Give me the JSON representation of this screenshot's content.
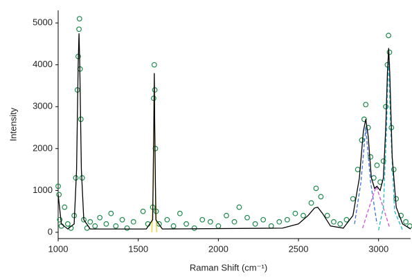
{
  "chart_data": {
    "type": "scatter",
    "x_label": "Raman Shift (cm⁻¹)",
    "y_label": "Intensity",
    "xlim": [
      1000,
      3200
    ],
    "ylim": [
      -150,
      5300
    ],
    "xticks": [
      1000,
      1500,
      2000,
      2500,
      3000
    ],
    "yticks": [
      0,
      1000,
      2000,
      3000,
      4000,
      5000
    ],
    "series": [
      {
        "mode": "markers",
        "color": "#1a8a4a",
        "x": [
          1000,
          1005,
          1010,
          1020,
          1040,
          1060,
          1080,
          1100,
          1110,
          1120,
          1125,
          1130,
          1133,
          1137,
          1142,
          1150,
          1160,
          1180,
          1200,
          1230,
          1260,
          1300,
          1330,
          1360,
          1400,
          1430,
          1470,
          1530,
          1560,
          1590,
          1596,
          1600,
          1603,
          1607,
          1612,
          1630,
          1680,
          1720,
          1760,
          1800,
          1850,
          1900,
          1950,
          2000,
          2050,
          2100,
          2130,
          2180,
          2230,
          2280,
          2330,
          2380,
          2430,
          2480,
          2530,
          2580,
          2610,
          2640,
          2680,
          2720,
          2760,
          2800,
          2840,
          2870,
          2895,
          2910,
          2920,
          2935,
          2950,
          2970,
          2990,
          3010,
          3030,
          3045,
          3055,
          3062,
          3068,
          3080,
          3095,
          3110,
          3140,
          3170,
          3195
        ],
        "values": [
          1100,
          900,
          300,
          150,
          600,
          200,
          100,
          400,
          1300,
          3400,
          4200,
          4850,
          5100,
          3900,
          2700,
          1300,
          300,
          100,
          250,
          150,
          350,
          200,
          450,
          150,
          300,
          100,
          250,
          500,
          200,
          600,
          3200,
          4000,
          3400,
          2000,
          500,
          200,
          300,
          150,
          450,
          200,
          100,
          300,
          250,
          150,
          400,
          250,
          600,
          350,
          200,
          300,
          150,
          250,
          300,
          450,
          400,
          700,
          1050,
          850,
          400,
          250,
          200,
          300,
          800,
          1500,
          2200,
          2700,
          3050,
          2500,
          1800,
          1300,
          1600,
          1200,
          1700,
          3000,
          4000,
          4700,
          4300,
          2500,
          1500,
          800,
          400,
          250,
          150
        ]
      },
      {
        "mode": "line",
        "color": "#f2d21b",
        "dash": false,
        "x": [
          1585,
          1594,
          1600,
          1606,
          1615
        ],
        "values": [
          0,
          1200,
          3700,
          1200,
          0
        ]
      },
      {
        "mode": "line",
        "color": "#3a6fd8",
        "dash": true,
        "x": [
          2850,
          2890,
          2920,
          2950,
          2990
        ],
        "values": [
          200,
          1200,
          2500,
          1200,
          200
        ]
      },
      {
        "mode": "line",
        "color": "#d24fd2",
        "dash": true,
        "x": [
          2900,
          2950,
          2985,
          3020,
          3070
        ],
        "values": [
          100,
          700,
          1100,
          700,
          100
        ]
      },
      {
        "mode": "line",
        "color": "#20b8c8",
        "dash": true,
        "x": [
          3000,
          3030,
          3050,
          3062,
          3075,
          3100,
          3150
        ],
        "values": [
          50,
          600,
          2500,
          4300,
          2500,
          500,
          50
        ]
      },
      {
        "mode": "line",
        "color": "#000000",
        "dash": false,
        "x": [
          1000,
          1020,
          1060,
          1100,
          1115,
          1125,
          1130,
          1135,
          1145,
          1160,
          1200,
          1550,
          1590,
          1597,
          1600,
          1603,
          1610,
          1650,
          2400,
          2500,
          2560,
          2600,
          2620,
          2650,
          2700,
          2780,
          2840,
          2880,
          2905,
          2920,
          2935,
          2955,
          2975,
          2990,
          3010,
          3030,
          3045,
          3055,
          3063,
          3070,
          3085,
          3110,
          3150,
          3200
        ],
        "values": [
          900,
          200,
          80,
          200,
          1500,
          4000,
          4750,
          4000,
          1500,
          300,
          80,
          80,
          300,
          2500,
          3800,
          2500,
          300,
          80,
          100,
          200,
          400,
          580,
          600,
          450,
          150,
          100,
          400,
          1300,
          2400,
          2700,
          2300,
          1300,
          1050,
          1100,
          1000,
          1300,
          2500,
          3800,
          4400,
          3800,
          1800,
          600,
          200,
          80
        ]
      }
    ]
  }
}
